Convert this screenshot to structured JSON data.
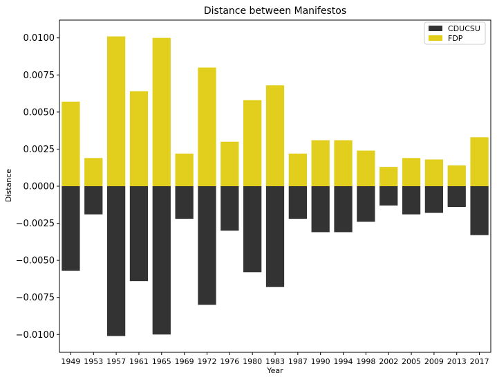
{
  "chart_data": {
    "type": "bar",
    "title": "Distance between Manifestos",
    "xlabel": "Year",
    "ylabel": "Distance",
    "ylim": [
      -0.0112,
      0.0112
    ],
    "yticks": [
      0.01,
      0.0075,
      0.005,
      0.0025,
      0.0,
      -0.0025,
      -0.005,
      -0.0075,
      -0.01
    ],
    "ytick_labels": [
      "0.0100",
      "0.0075",
      "0.0050",
      "0.0025",
      "0.0000",
      "−0.0025",
      "−0.0050",
      "−0.0075",
      "−0.0100"
    ],
    "grid": false,
    "legend_position": "top-right",
    "categories": [
      "1949",
      "1953",
      "1957",
      "1961",
      "1965",
      "1969",
      "1972",
      "1976",
      "1980",
      "1983",
      "1987",
      "1990",
      "1994",
      "1998",
      "2002",
      "2005",
      "2009",
      "2013",
      "2017"
    ],
    "series": [
      {
        "name": "CDUCSU",
        "color": "#333333",
        "values": [
          -0.0057,
          -0.0019,
          -0.0101,
          -0.0064,
          -0.01,
          -0.0022,
          -0.008,
          -0.003,
          -0.0058,
          -0.0068,
          -0.0022,
          -0.0031,
          -0.0031,
          -0.0024,
          -0.0013,
          -0.0019,
          -0.0018,
          -0.0014,
          -0.0033
        ]
      },
      {
        "name": "FDP",
        "color": "#e2ce1c",
        "values": [
          0.0057,
          0.0019,
          0.0101,
          0.0064,
          0.01,
          0.0022,
          0.008,
          0.003,
          0.0058,
          0.0068,
          0.0022,
          0.0031,
          0.0031,
          0.0024,
          0.0013,
          0.0019,
          0.0018,
          0.0014,
          0.0033
        ]
      }
    ]
  }
}
